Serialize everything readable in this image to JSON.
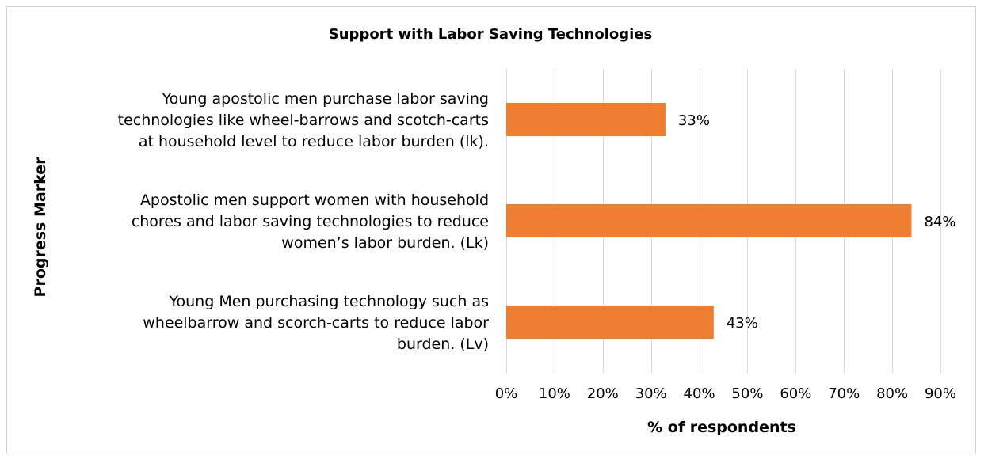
{
  "chart_data": {
    "type": "bar",
    "orientation": "horizontal",
    "title": "Support with Labor Saving Technologies",
    "xlabel": "% of respondents",
    "ylabel": "Progress Marker",
    "categories": [
      [
        "Young apostolic men purchase labor saving",
        "technologies like wheel-barrows and scotch-carts",
        "at household level to reduce labor burden (lk)."
      ],
      [
        "Apostolic men support women with household",
        "chores and labor saving technologies to reduce",
        "women’s labor burden. (Lk)"
      ],
      [
        "Young Men purchasing technology such as",
        "wheelbarrow and scorch-carts to reduce labor",
        "burden. (Lv)"
      ]
    ],
    "values": [
      33,
      84,
      43
    ],
    "data_labels": [
      "33%",
      "84%",
      "43%"
    ],
    "xlim": [
      0,
      90
    ],
    "xticks": [
      0,
      10,
      20,
      30,
      40,
      50,
      60,
      70,
      80,
      90
    ],
    "xtick_labels": [
      "0%",
      "10%",
      "20%",
      "30%",
      "40%",
      "50%",
      "60%",
      "70%",
      "80%",
      "90%"
    ],
    "bar_color": "#ED7D31",
    "grid": true,
    "legend": "none"
  }
}
